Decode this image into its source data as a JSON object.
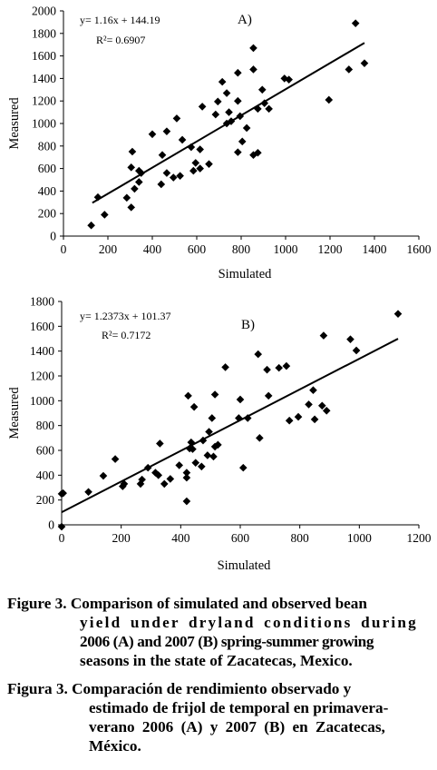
{
  "chart_data": [
    {
      "type": "scatter",
      "panel_label": "A)",
      "xlabel": "Simulated",
      "ylabel": "Measured",
      "xlim": [
        0,
        1600
      ],
      "ylim": [
        0,
        2000
      ],
      "x_ticks": [
        0,
        200,
        400,
        600,
        800,
        1000,
        1200,
        1400,
        1600
      ],
      "y_ticks": [
        0,
        200,
        400,
        600,
        800,
        1000,
        1200,
        1400,
        1600,
        1800,
        2000
      ],
      "equation": "y= 1.16x + 144.19",
      "r2": "R²= 0.6907",
      "trendline": {
        "slope": 1.16,
        "intercept": 144.19,
        "x_range": [
          130,
          1355
        ]
      },
      "grid": false,
      "points": [
        [
          125,
          95
        ],
        [
          155,
          345
        ],
        [
          185,
          190
        ],
        [
          285,
          340
        ],
        [
          305,
          610
        ],
        [
          310,
          750
        ],
        [
          305,
          255
        ],
        [
          320,
          420
        ],
        [
          340,
          480
        ],
        [
          340,
          580
        ],
        [
          350,
          560
        ],
        [
          400,
          905
        ],
        [
          440,
          460
        ],
        [
          445,
          720
        ],
        [
          465,
          560
        ],
        [
          465,
          930
        ],
        [
          495,
          520
        ],
        [
          510,
          1045
        ],
        [
          525,
          535
        ],
        [
          535,
          855
        ],
        [
          575,
          790
        ],
        [
          585,
          580
        ],
        [
          595,
          650
        ],
        [
          615,
          600
        ],
        [
          625,
          1150
        ],
        [
          615,
          770
        ],
        [
          655,
          640
        ],
        [
          685,
          1080
        ],
        [
          695,
          1195
        ],
        [
          715,
          1370
        ],
        [
          735,
          1270
        ],
        [
          735,
          1000
        ],
        [
          745,
          1100
        ],
        [
          755,
          1020
        ],
        [
          785,
          1450
        ],
        [
          785,
          1200
        ],
        [
          785,
          745
        ],
        [
          795,
          1065
        ],
        [
          805,
          840
        ],
        [
          825,
          960
        ],
        [
          855,
          1670
        ],
        [
          855,
          1480
        ],
        [
          855,
          720
        ],
        [
          875,
          1130
        ],
        [
          875,
          740
        ],
        [
          895,
          1300
        ],
        [
          905,
          1180
        ],
        [
          925,
          1130
        ],
        [
          995,
          1400
        ],
        [
          1015,
          1390
        ],
        [
          1195,
          1210
        ],
        [
          1285,
          1480
        ],
        [
          1315,
          1890
        ],
        [
          1355,
          1535
        ]
      ]
    },
    {
      "type": "scatter",
      "panel_label": "B)",
      "xlabel": "Simulated",
      "ylabel": "Measured",
      "xlim": [
        0,
        1200
      ],
      "ylim": [
        0,
        1800
      ],
      "x_ticks": [
        0,
        200,
        400,
        600,
        800,
        1000,
        1200
      ],
      "y_ticks": [
        0,
        200,
        400,
        600,
        800,
        1000,
        1200,
        1400,
        1600,
        1800
      ],
      "equation": "y= 1.2373x + 101.37",
      "r2": "R²= 0.7172",
      "trendline": {
        "slope": 1.2373,
        "intercept": 101.37,
        "x_range": [
          0,
          1130
        ]
      },
      "grid": false,
      "points": [
        [
          0,
          -15
        ],
        [
          0,
          250
        ],
        [
          5,
          255
        ],
        [
          90,
          265
        ],
        [
          140,
          395
        ],
        [
          180,
          530
        ],
        [
          205,
          310
        ],
        [
          210,
          330
        ],
        [
          265,
          330
        ],
        [
          270,
          365
        ],
        [
          290,
          460
        ],
        [
          315,
          420
        ],
        [
          325,
          400
        ],
        [
          330,
          655
        ],
        [
          345,
          330
        ],
        [
          365,
          370
        ],
        [
          395,
          480
        ],
        [
          420,
          420
        ],
        [
          420,
          380
        ],
        [
          420,
          190
        ],
        [
          425,
          1040
        ],
        [
          430,
          615
        ],
        [
          435,
          665
        ],
        [
          440,
          610
        ],
        [
          445,
          950
        ],
        [
          450,
          500
        ],
        [
          470,
          470
        ],
        [
          475,
          680
        ],
        [
          490,
          560
        ],
        [
          495,
          750
        ],
        [
          505,
          860
        ],
        [
          510,
          550
        ],
        [
          515,
          1050
        ],
        [
          515,
          630
        ],
        [
          525,
          645
        ],
        [
          550,
          1270
        ],
        [
          595,
          860
        ],
        [
          600,
          1010
        ],
        [
          610,
          460
        ],
        [
          625,
          860
        ],
        [
          660,
          1375
        ],
        [
          665,
          700
        ],
        [
          690,
          1250
        ],
        [
          695,
          1040
        ],
        [
          730,
          1265
        ],
        [
          755,
          1280
        ],
        [
          765,
          840
        ],
        [
          795,
          870
        ],
        [
          830,
          970
        ],
        [
          845,
          1085
        ],
        [
          850,
          850
        ],
        [
          875,
          960
        ],
        [
          880,
          1525
        ],
        [
          890,
          920
        ],
        [
          970,
          1495
        ],
        [
          990,
          1405
        ],
        [
          1130,
          1700
        ]
      ]
    }
  ],
  "caption_en": {
    "lines": [
      "Figure 3. Comparison of simulated and observed bean",
      "yield under dryland conditions during",
      "2006 (A) and 2007 (B) spring-summer growing",
      "seasons in the state of Zacatecas, Mexico."
    ]
  },
  "caption_es": {
    "lines": [
      "Figura 3. Comparación de rendimiento observado y",
      "estimado de frijol de temporal en primavera-",
      "verano 2006 (A) y 2007 (B) en Zacatecas,",
      "México."
    ]
  }
}
